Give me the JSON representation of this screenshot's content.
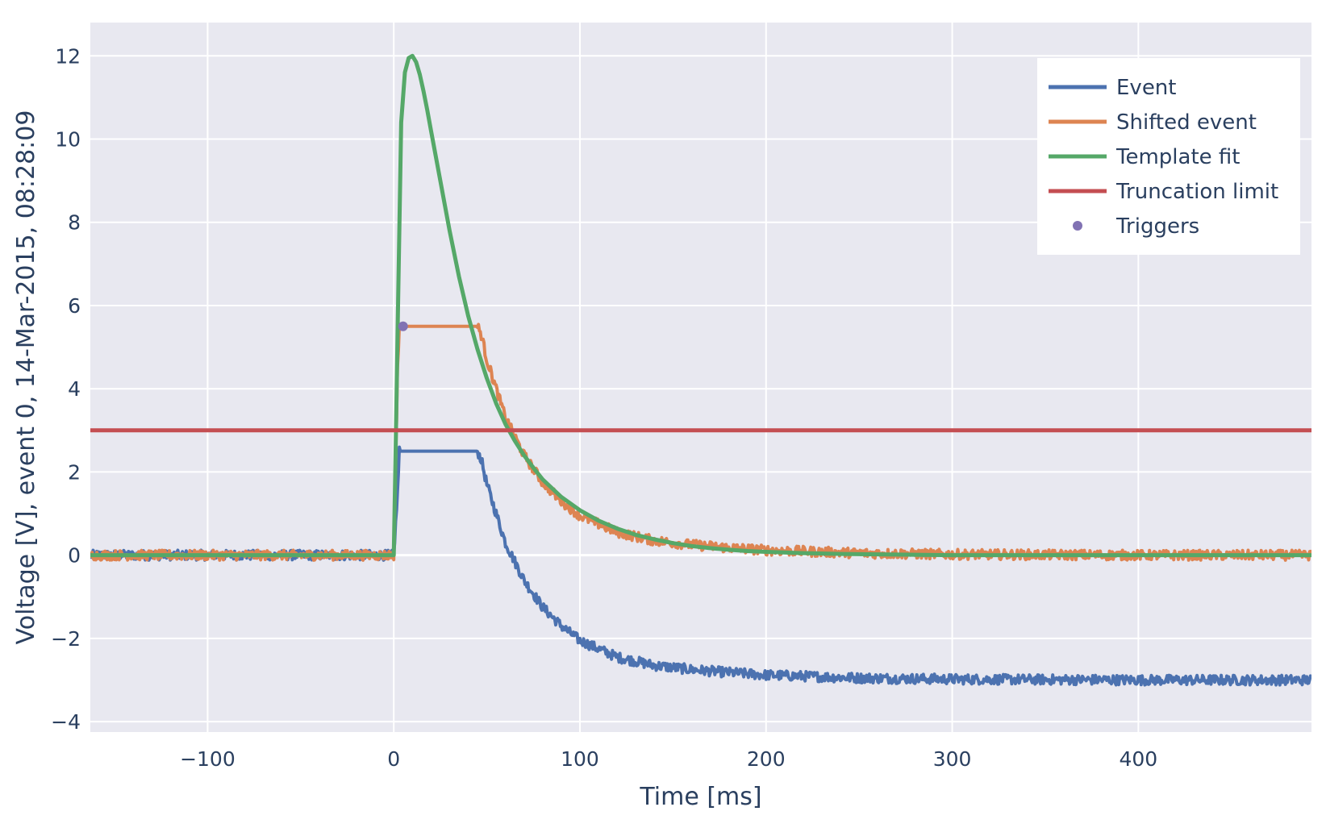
{
  "chart_data": {
    "type": "line",
    "xlabel": "Time [ms]",
    "ylabel": "Voltage [V], event 0, 14-Mar-2015, 08:28:09",
    "xlim": [
      -163,
      493
    ],
    "ylim": [
      -4.25,
      12.8
    ],
    "xticks": [
      -100,
      0,
      100,
      200,
      300,
      400
    ],
    "xtick_labels": [
      "−100",
      "0",
      "100",
      "200",
      "300",
      "400"
    ],
    "yticks": [
      -4,
      -2,
      0,
      2,
      4,
      6,
      8,
      10,
      12
    ],
    "ytick_labels": [
      "−4",
      "−2",
      "0",
      "2",
      "4",
      "6",
      "8",
      "10",
      "12"
    ],
    "grid": true,
    "legend_position": "top-right",
    "colors": {
      "event": "#4c72b0",
      "shifted": "#dd8452",
      "template": "#55a868",
      "truncation": "#c44e52",
      "triggers": "#8172b3",
      "plot_bg": "#e8e8f0",
      "grid": "#ffffff"
    },
    "series": [
      {
        "name": "Event",
        "color": "#4c72b0",
        "noise_amplitude": 0.12,
        "x": [
          -163,
          0,
          2,
          3,
          45,
          47,
          50,
          60,
          70,
          80,
          90,
          100,
          120,
          140,
          160,
          180,
          200,
          250,
          300,
          350,
          400,
          450,
          493
        ],
        "y": [
          0,
          0,
          1.5,
          2.5,
          2.5,
          2.3,
          1.7,
          0.3,
          -0.6,
          -1.25,
          -1.7,
          -2.05,
          -2.45,
          -2.65,
          -2.75,
          -2.82,
          -2.88,
          -2.95,
          -2.98,
          -2.99,
          -3.0,
          -3.0,
          -3.0
        ]
      },
      {
        "name": "Shifted event",
        "color": "#dd8452",
        "noise_amplitude": 0.12,
        "x": [
          -163,
          0,
          2,
          3,
          45,
          47,
          50,
          60,
          70,
          80,
          90,
          100,
          120,
          140,
          160,
          180,
          200,
          250,
          300,
          350,
          400,
          450,
          493
        ],
        "y": [
          0,
          0,
          4.5,
          5.5,
          5.5,
          5.3,
          4.7,
          3.3,
          2.4,
          1.75,
          1.3,
          0.95,
          0.55,
          0.35,
          0.25,
          0.18,
          0.12,
          0.05,
          0.02,
          0.01,
          0.0,
          0.0,
          0.0
        ]
      },
      {
        "name": "Template fit",
        "color": "#55a868",
        "x": [
          -163,
          0,
          1,
          2,
          3,
          4,
          6,
          8,
          10,
          12,
          14,
          16,
          18,
          20,
          25,
          30,
          35,
          40,
          45,
          50,
          55,
          60,
          65,
          70,
          75,
          80,
          90,
          100,
          110,
          120,
          130,
          140,
          150,
          160,
          170,
          180,
          190,
          200,
          220,
          240,
          260,
          280,
          300,
          350,
          400,
          493
        ],
        "y": [
          0,
          0,
          2.5,
          5.2,
          7.8,
          10.4,
          11.6,
          11.95,
          12.0,
          11.85,
          11.55,
          11.15,
          10.7,
          10.2,
          9.0,
          7.8,
          6.7,
          5.75,
          4.95,
          4.25,
          3.65,
          3.15,
          2.75,
          2.4,
          2.1,
          1.82,
          1.4,
          1.08,
          0.83,
          0.64,
          0.49,
          0.38,
          0.29,
          0.22,
          0.17,
          0.13,
          0.1,
          0.08,
          0.05,
          0.03,
          0.02,
          0.01,
          0.0,
          0.0,
          0.0,
          0.0
        ]
      },
      {
        "name": "Truncation limit",
        "color": "#c44e52",
        "x": [
          -163,
          493
        ],
        "y": [
          3,
          3
        ]
      },
      {
        "name": "Triggers",
        "color": "#8172b3",
        "mode": "markers",
        "x": [
          5
        ],
        "y": [
          5.5
        ]
      }
    ]
  }
}
